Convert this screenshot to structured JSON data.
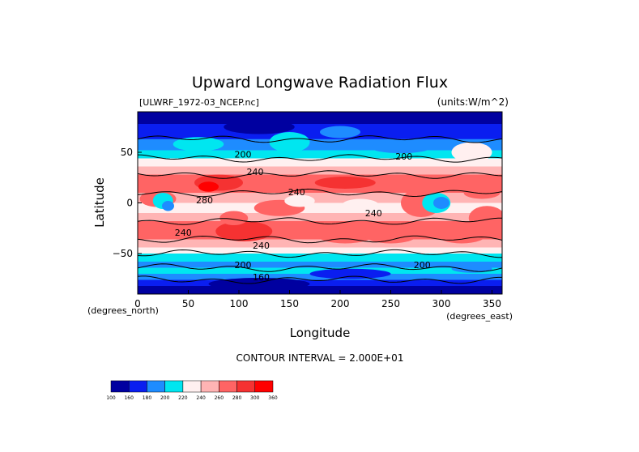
{
  "chart_data": {
    "type": "heatmap",
    "title": "Upward Longwave Radiation Flux",
    "file_label": "[ULWRF_1972-03_NCEP.nc]",
    "units_label": "(units:W/m^2)",
    "xlabel": "Longitude",
    "ylabel": "Latitude",
    "x_unit_label": "(degrees_east)",
    "y_unit_label": "(degrees_north)",
    "xlim": [
      0,
      360
    ],
    "ylim": [
      -90,
      90
    ],
    "x_ticks": [
      0,
      50,
      100,
      150,
      200,
      250,
      300,
      350
    ],
    "y_ticks": [
      -50,
      0,
      50
    ],
    "contour_interval_text": "CONTOUR INTERVAL = 2.000E+01",
    "contour_interval": 20,
    "levels": [
      100,
      160,
      180,
      200,
      220,
      240,
      260,
      280,
      300,
      360
    ],
    "level_colors": [
      "#0000a0",
      "#0a1ef0",
      "#1e8cff",
      "#00e6f0",
      "#fff0f0",
      "#ffb4b4",
      "#ff6464",
      "#f53232",
      "#ff0000"
    ],
    "contour_labels": [
      {
        "text": "200",
        "lon": 104,
        "lat": 48
      },
      {
        "text": "200",
        "lon": 263,
        "lat": 46
      },
      {
        "text": "240",
        "lon": 116,
        "lat": 31
      },
      {
        "text": "240",
        "lon": 157,
        "lat": 11
      },
      {
        "text": "240",
        "lon": 233,
        "lat": -10
      },
      {
        "text": "280",
        "lon": 66,
        "lat": 3
      },
      {
        "text": "240",
        "lon": 45,
        "lat": -29
      },
      {
        "text": "240",
        "lon": 122,
        "lat": -42
      },
      {
        "text": "200",
        "lon": 104,
        "lat": -61
      },
      {
        "text": "200",
        "lon": 281,
        "lat": -61
      },
      {
        "text": "160",
        "lon": 122,
        "lat": -73
      }
    ]
  }
}
